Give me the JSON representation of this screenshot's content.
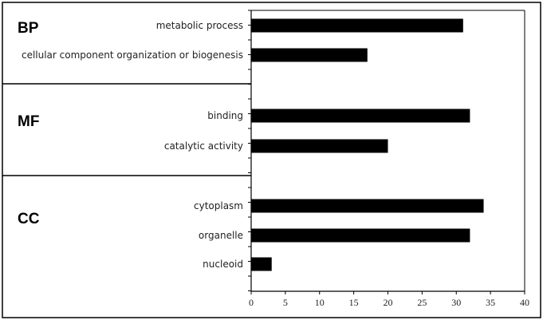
{
  "chart_data": {
    "type": "bar",
    "orientation": "horizontal",
    "groups": [
      {
        "label": "BP",
        "categories": [
          "metabolic process",
          "cellular component organization or biogenesis"
        ],
        "values": [
          31,
          17
        ]
      },
      {
        "label": "MF",
        "categories": [
          "binding",
          "catalytic activity"
        ],
        "values": [
          32,
          20
        ]
      },
      {
        "label": "CC",
        "categories": [
          "cytoplasm",
          "organelle",
          "nucleoid"
        ],
        "values": [
          34,
          32,
          3
        ]
      }
    ],
    "xlim": [
      0,
      40
    ],
    "xticks": [
      "0",
      "5",
      "10",
      "15",
      "20",
      "25",
      "30",
      "35",
      "40"
    ],
    "grid": false,
    "bar_color": "#000000",
    "title": "",
    "xlabel": "",
    "ylabel": ""
  }
}
